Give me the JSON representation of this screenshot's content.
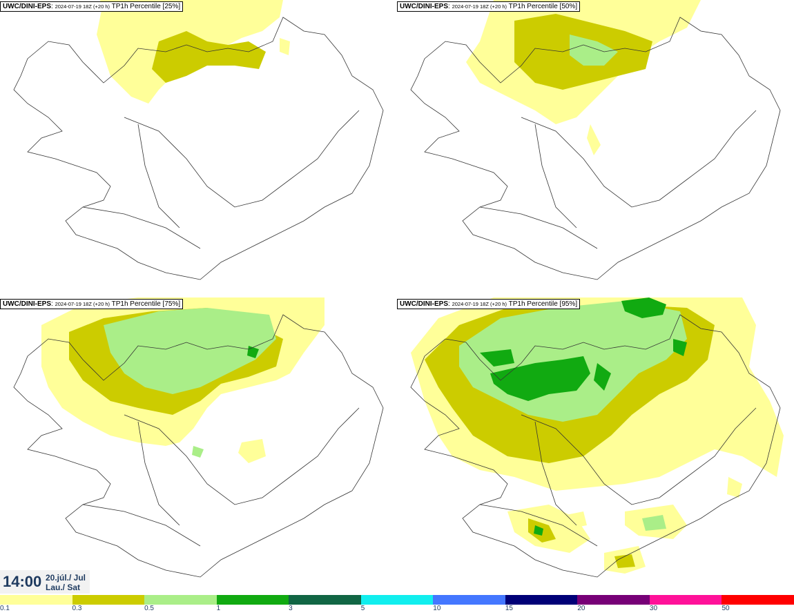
{
  "panels": [
    {
      "source": "UWC/DINI-EPS",
      "run": "2024-07-19 18Z (+20 h)",
      "title": "TP1h Percentile [25%]"
    },
    {
      "source": "UWC/DINI-EPS",
      "run": "2024-07-19 18Z (+20 h)",
      "title": "TP1h Percentile [50%]"
    },
    {
      "source": "UWC/DINI-EPS",
      "run": "2024-07-19 18Z (+20 h)",
      "title": "TP1h Percentile [75%]"
    },
    {
      "source": "UWC/DINI-EPS",
      "run": "2024-07-19 18Z (+20 h)",
      "title": "TP1h Percentile [95%]"
    }
  ],
  "clock": {
    "time": "14:00",
    "date_line1": "20.júl./ Jul",
    "date_line2": "Lau./ Sat"
  },
  "legend": {
    "labels": [
      "0.1",
      "0.3",
      "0.5",
      "1",
      "3",
      "5",
      "10",
      "15",
      "20",
      "30",
      "50"
    ],
    "colors": [
      "#ffff99",
      "#cccc00",
      "#aaee88",
      "#11aa11",
      "#116644",
      "#11eeee",
      "#4477ff",
      "#000077",
      "#770077",
      "#ff1199",
      "#ff0000"
    ]
  }
}
